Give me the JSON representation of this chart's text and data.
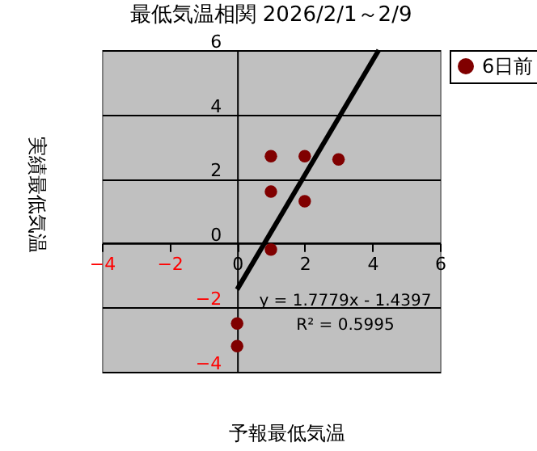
{
  "chart_data": {
    "type": "scatter",
    "title": "最低気温相関  2026/2/1～2/9",
    "xlabel": "予報最低気温",
    "ylabel": "実績最低気温",
    "x": [
      1,
      2,
      3,
      1,
      2,
      1,
      0,
      0
    ],
    "series": [
      {
        "name": "6日前",
        "color": "#800000",
        "marker": "circle",
        "values": [
          2.7,
          2.7,
          2.6,
          1.6,
          1.3,
          -0.2,
          -2.5,
          -3.2
        ]
      },
      {
        "type": "line",
        "color": "#000000",
        "x": [
          0,
          4.19
        ],
        "values": [
          -1.44,
          6
        ]
      }
    ],
    "annotations": [
      "y = 1.7779x - 1.4397",
      "R² = 0.5995"
    ],
    "xlim": [
      -4,
      6
    ],
    "xticks": [
      -4,
      -2,
      0,
      2,
      4,
      6
    ],
    "ylim": [
      -4,
      6
    ],
    "yticks": [
      -4,
      -2,
      0,
      2,
      4,
      6
    ],
    "grid": "y",
    "legend": "right",
    "line_style": "solid"
  }
}
